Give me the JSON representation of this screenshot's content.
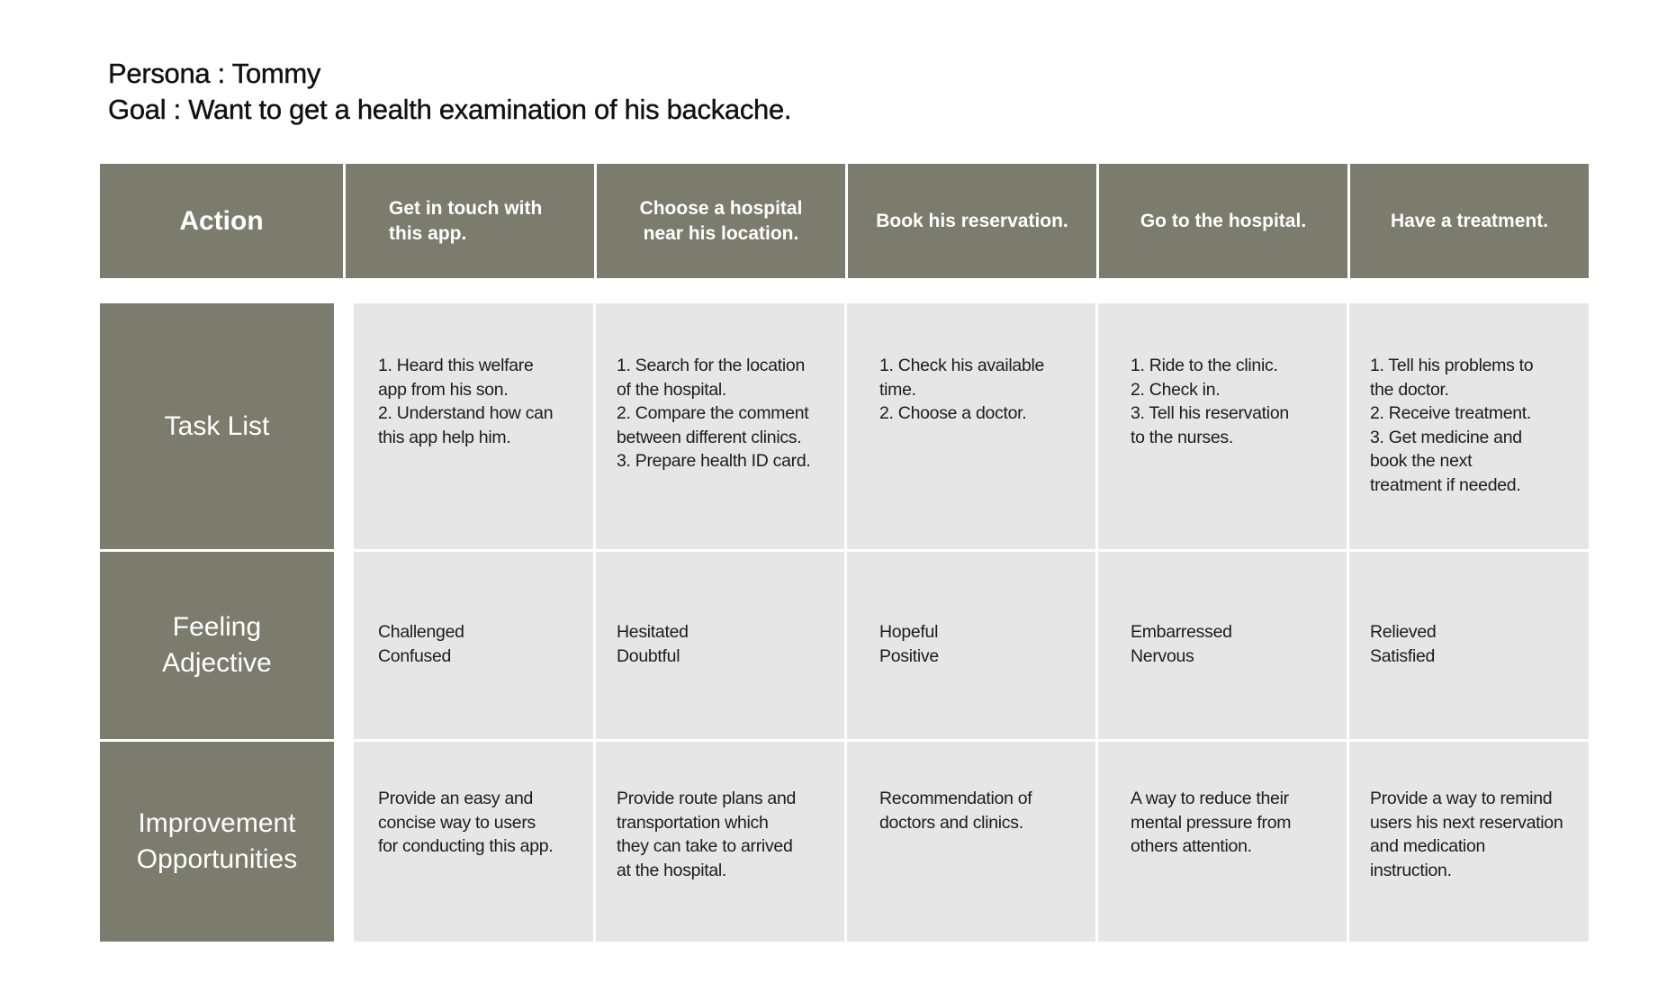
{
  "persona_line": "Persona : Tommy",
  "goal_line": "Goal : Want to get a health examination of his backache.",
  "action_label": "Action",
  "steps": [
    "Get in touch with\nthis app.",
    "Choose a hospital\nnear his location.",
    "Book his reservation.",
    "Go to the hospital.",
    "Have a treatment."
  ],
  "rows": [
    {
      "label": "Task List",
      "cells": [
        "1. Heard this welfare\napp from his son.\n2. Understand how can\nthis app help him.",
        "1. Search for the location\nof the hospital.\n2. Compare the comment\nbetween different clinics.\n3. Prepare health ID card.",
        "1. Check his available\ntime.\n2. Choose a doctor.",
        "1. Ride to the clinic.\n2. Check in.\n3. Tell his reservation\nto the nurses.",
        "1. Tell his problems to\nthe doctor.\n2. Receive treatment.\n3. Get medicine and\nbook the next\ntreatment if needed."
      ]
    },
    {
      "label": "Feeling\nAdjective",
      "cells": [
        "Challenged\nConfused",
        "Hesitated\nDoubtful",
        "Hopeful\nPositive",
        "Embarressed\nNervous",
        "Relieved\nSatisfied"
      ]
    },
    {
      "label": "Improvement\nOpportunities",
      "cells": [
        "Provide an easy and\nconcise way to users\nfor conducting this app.",
        "Provide route plans and\ntransportation which\nthey can take to arrived\nat the hospital.",
        "Recommendation of\ndoctors and clinics.",
        "A way to reduce their\nmental pressure from\nothers attention.",
        "Provide a way to remind\nusers his next reservation\nand medication\ninstruction."
      ]
    }
  ]
}
